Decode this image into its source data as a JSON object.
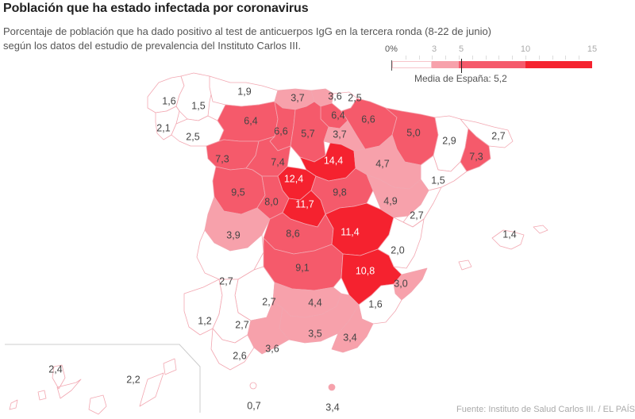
{
  "title": "Población que ha estado infectada por coronavirus",
  "subtitle_line1": "Porcentaje de población que ha dado positivo al test de anticuerpos IgG en la tercera ronda (8-22 de junio)",
  "subtitle_line2": "según los datos del estudio de prevalencia del Instituto Carlos III.",
  "legend": {
    "ticks": [
      "0%",
      "3",
      "5",
      "10",
      "15"
    ],
    "breaks": [
      0,
      3,
      5,
      10,
      15
    ],
    "colors": [
      "#ffffff",
      "#f7a1ab",
      "#f55a6b",
      "#f5222f"
    ],
    "average_label": "Media de España: 5,2",
    "average_value": 5.2
  },
  "colors": {
    "outline": "#f2a7b1",
    "text_dark": "#444444",
    "text_light": "#ffffff"
  },
  "chart_data": {
    "type": "choropleth",
    "title": "Población que ha estado infectada por coronavirus",
    "unit": "%",
    "national_average": 5.2,
    "provinces": [
      {
        "id": "a-coruna",
        "value": 1.6,
        "label": "1,6"
      },
      {
        "id": "lugo",
        "value": 1.5,
        "label": "1,5"
      },
      {
        "id": "pontevedra",
        "value": 2.1,
        "label": "2,1"
      },
      {
        "id": "ourense",
        "value": 2.5,
        "label": "2,5"
      },
      {
        "id": "asturias",
        "value": 1.9,
        "label": "1,9"
      },
      {
        "id": "cantabria",
        "value": 3.7,
        "label": "3,7"
      },
      {
        "id": "bizkaia",
        "value": 3.6,
        "label": "3,6"
      },
      {
        "id": "gipuzkoa",
        "value": 2.5,
        "label": "2,5"
      },
      {
        "id": "alava",
        "value": 6.4,
        "label": "6,4"
      },
      {
        "id": "navarra",
        "value": 6.6,
        "label": "6,6"
      },
      {
        "id": "leon",
        "value": 6.4,
        "label": "6,4"
      },
      {
        "id": "palencia",
        "value": 6.6,
        "label": "6,6"
      },
      {
        "id": "burgos",
        "value": 5.7,
        "label": "5,7"
      },
      {
        "id": "la-rioja",
        "value": 3.7,
        "label": "3,7"
      },
      {
        "id": "huesca",
        "value": 5.0,
        "label": "5,0"
      },
      {
        "id": "lleida",
        "value": 2.9,
        "label": "2,9"
      },
      {
        "id": "girona",
        "value": 2.7,
        "label": "2,7"
      },
      {
        "id": "barcelona",
        "value": 7.3,
        "label": "7,3"
      },
      {
        "id": "tarragona",
        "value": 1.5,
        "label": "1,5"
      },
      {
        "id": "zamora",
        "value": 7.3,
        "label": "7,3"
      },
      {
        "id": "valladolid",
        "value": 7.4,
        "label": "7,4"
      },
      {
        "id": "soria",
        "value": 14.4,
        "label": "14,4"
      },
      {
        "id": "zaragoza",
        "value": 4.7,
        "label": "4,7"
      },
      {
        "id": "segovia",
        "value": 12.4,
        "label": "12,4"
      },
      {
        "id": "salamanca",
        "value": 9.5,
        "label": "9,5"
      },
      {
        "id": "avila",
        "value": 8.0,
        "label": "8,0"
      },
      {
        "id": "madrid",
        "value": 11.7,
        "label": "11,7"
      },
      {
        "id": "guadalajara",
        "value": 9.8,
        "label": "9,8"
      },
      {
        "id": "teruel",
        "value": 4.9,
        "label": "4,9"
      },
      {
        "id": "castellon",
        "value": 2.7,
        "label": "2,7"
      },
      {
        "id": "caceres",
        "value": 3.9,
        "label": "3,9"
      },
      {
        "id": "toledo",
        "value": 8.6,
        "label": "8,6"
      },
      {
        "id": "cuenca",
        "value": 11.4,
        "label": "11,4"
      },
      {
        "id": "valencia",
        "value": 2.0,
        "label": "2,0"
      },
      {
        "id": "baleares",
        "value": 1.4,
        "label": "1,4"
      },
      {
        "id": "badajoz",
        "value": 2.7,
        "label": "2,7"
      },
      {
        "id": "ciudad-real",
        "value": 9.1,
        "label": "9,1"
      },
      {
        "id": "albacete",
        "value": 10.8,
        "label": "10,8"
      },
      {
        "id": "alicante",
        "value": 3.0,
        "label": "3,0"
      },
      {
        "id": "cordoba",
        "value": 2.7,
        "label": "2,7"
      },
      {
        "id": "jaen",
        "value": 4.4,
        "label": "4,4"
      },
      {
        "id": "murcia",
        "value": 1.6,
        "label": "1,6"
      },
      {
        "id": "huelva",
        "value": 1.2,
        "label": "1,2"
      },
      {
        "id": "sevilla",
        "value": 2.7,
        "label": "2,7"
      },
      {
        "id": "granada",
        "value": 3.5,
        "label": "3,5"
      },
      {
        "id": "almeria",
        "value": 3.4,
        "label": "3,4"
      },
      {
        "id": "cadiz",
        "value": 2.6,
        "label": "2,6"
      },
      {
        "id": "malaga",
        "value": 3.6,
        "label": "3,6"
      },
      {
        "id": "santa-cruz-de-tenerife",
        "value": 2.4,
        "label": "2,4"
      },
      {
        "id": "las-palmas",
        "value": 2.2,
        "label": "2,2"
      },
      {
        "id": "ceuta",
        "value": 0.7,
        "label": "0,7"
      },
      {
        "id": "melilla",
        "value": 3.4,
        "label": "3,4"
      }
    ]
  },
  "source": "Fuente: Instituto de Salud Carlos III. / EL PAÍS"
}
